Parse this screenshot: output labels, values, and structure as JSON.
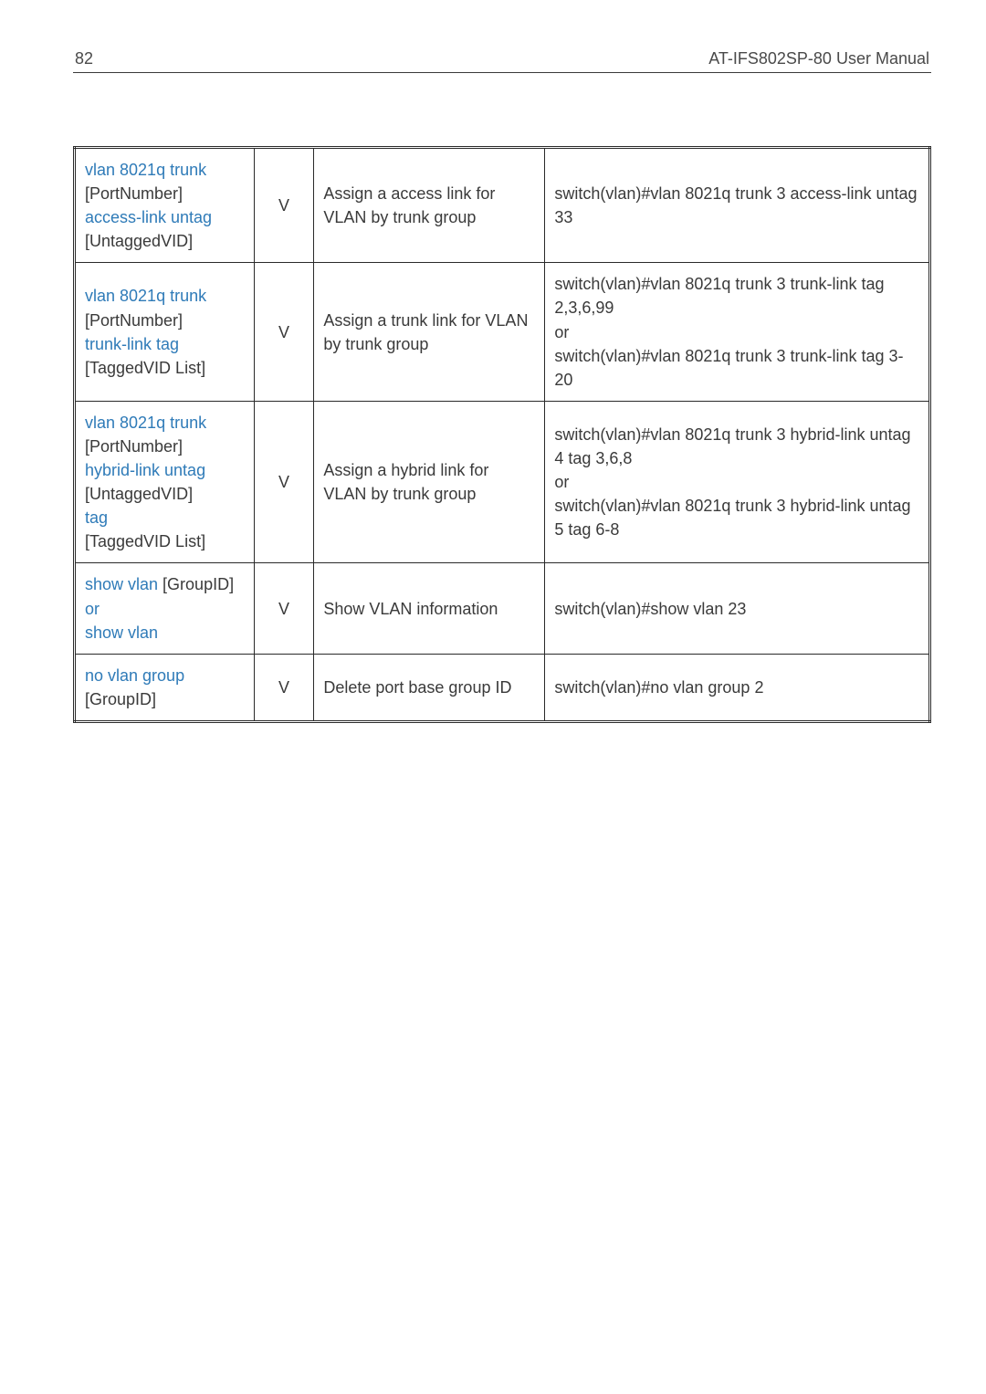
{
  "header": {
    "page_number": "82",
    "doc_title": "AT-IFS802SP-80 User Manual"
  },
  "colors": {
    "keyword": "#2f7bb8",
    "text": "#3a3a3a",
    "rule": "#2a2a2a",
    "background": "#ffffff"
  },
  "table": {
    "col_widths_pct": [
      21,
      7,
      27,
      45
    ],
    "rows": [
      {
        "cmd": {
          "lines": [
            [
              {
                "t": "vlan 8021q trunk",
                "kw": true
              }
            ],
            [
              {
                "t": "[PortNumber]",
                "kw": false
              }
            ],
            [
              {
                "t": "access-link untag",
                "kw": true
              }
            ],
            [
              {
                "t": "[UntaggedVID]",
                "kw": false
              }
            ]
          ]
        },
        "mode": "V",
        "desc": "Assign a access link for VLAN by trunk group",
        "example": {
          "lines": [
            [
              {
                "t": "switch(vlan)#vlan 8021q trunk 3 access-link untag 33",
                "kw": false
              }
            ]
          ]
        }
      },
      {
        "cmd": {
          "lines": [
            [
              {
                "t": "vlan 8021q trunk",
                "kw": true
              }
            ],
            [
              {
                "t": "[PortNumber]",
                "kw": false
              }
            ],
            [
              {
                "t": "trunk-link tag",
                "kw": true
              }
            ],
            [
              {
                "t": "[TaggedVID List]",
                "kw": false
              }
            ]
          ]
        },
        "mode": "V",
        "desc": "Assign a trunk link for VLAN by trunk group",
        "example": {
          "lines": [
            [
              {
                "t": "switch(vlan)#vlan 8021q trunk 3 trunk-link tag 2,3,6,99",
                "kw": false
              }
            ],
            [
              {
                "t": "or",
                "kw": false
              }
            ],
            [
              {
                "t": "switch(vlan)#vlan 8021q trunk 3 trunk-link tag 3-20",
                "kw": false
              }
            ]
          ]
        }
      },
      {
        "cmd": {
          "lines": [
            [
              {
                "t": "vlan 8021q trunk",
                "kw": true
              }
            ],
            [
              {
                "t": "[PortNumber]",
                "kw": false
              }
            ],
            [
              {
                "t": "hybrid-link untag",
                "kw": true
              }
            ],
            [
              {
                "t": "[UntaggedVID]",
                "kw": false
              }
            ],
            [
              {
                "t": "tag",
                "kw": true
              }
            ],
            [
              {
                "t": "[TaggedVID List]",
                "kw": false
              }
            ]
          ]
        },
        "mode": "V",
        "desc": "Assign a hybrid link for VLAN by trunk group",
        "example": {
          "lines": [
            [
              {
                "t": "switch(vlan)#vlan 8021q trunk 3 hybrid-link untag 4 tag 3,6,8",
                "kw": false
              }
            ],
            [
              {
                "t": "or",
                "kw": false
              }
            ],
            [
              {
                "t": "switch(vlan)#vlan 8021q trunk 3 hybrid-link untag 5 tag 6-8",
                "kw": false
              }
            ]
          ]
        }
      },
      {
        "cmd": {
          "lines": [
            [
              {
                "t": "show vlan ",
                "kw": true
              },
              {
                "t": "[GroupID]",
                "kw": false
              }
            ],
            [
              {
                "t": "or",
                "kw": true
              }
            ],
            [
              {
                "t": "show vlan",
                "kw": true
              }
            ]
          ]
        },
        "mode": "V",
        "desc": "Show VLAN information",
        "example": {
          "lines": [
            [
              {
                "t": "switch(vlan)#show vlan 23",
                "kw": false
              }
            ]
          ]
        }
      },
      {
        "cmd": {
          "lines": [
            [
              {
                "t": "no vlan group",
                "kw": true
              }
            ],
            [
              {
                "t": "[GroupID]",
                "kw": false
              }
            ]
          ]
        },
        "mode": "V",
        "desc": "Delete port base group ID",
        "example": {
          "lines": [
            [
              {
                "t": "switch(vlan)#no vlan group 2",
                "kw": false
              }
            ]
          ]
        }
      }
    ]
  }
}
